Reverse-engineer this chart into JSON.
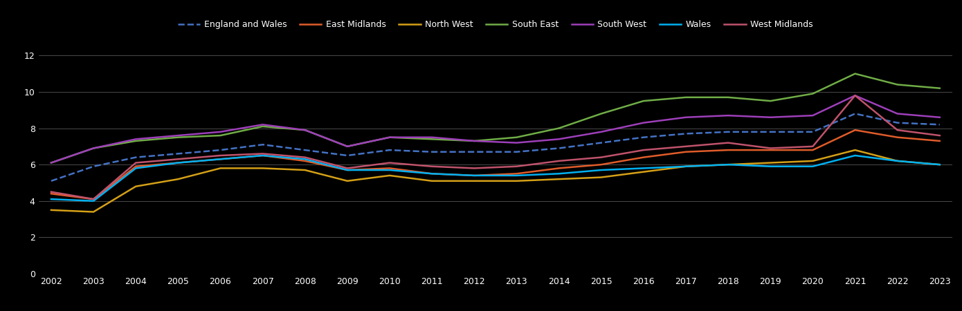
{
  "years": [
    2002,
    2003,
    2004,
    2005,
    2006,
    2007,
    2008,
    2009,
    2010,
    2011,
    2012,
    2013,
    2014,
    2015,
    2016,
    2017,
    2018,
    2019,
    2020,
    2021,
    2022,
    2023
  ],
  "series": {
    "England and Wales": [
      5.1,
      5.9,
      6.4,
      6.6,
      6.8,
      7.1,
      6.8,
      6.5,
      6.8,
      6.7,
      6.7,
      6.7,
      6.9,
      7.2,
      7.5,
      7.7,
      7.8,
      7.8,
      7.8,
      8.8,
      8.3,
      8.2
    ],
    "East Midlands": [
      4.4,
      4.1,
      5.9,
      6.1,
      6.3,
      6.5,
      6.2,
      5.7,
      5.8,
      5.5,
      5.4,
      5.5,
      5.8,
      6.0,
      6.4,
      6.7,
      6.8,
      6.8,
      6.8,
      7.9,
      7.5,
      7.3
    ],
    "North West": [
      3.5,
      3.4,
      4.8,
      5.2,
      5.8,
      5.8,
      5.7,
      5.1,
      5.4,
      5.1,
      5.1,
      5.1,
      5.2,
      5.3,
      5.6,
      5.9,
      6.0,
      6.1,
      6.2,
      6.8,
      6.2,
      6.0
    ],
    "South East": [
      6.1,
      6.9,
      7.3,
      7.5,
      7.6,
      8.1,
      7.9,
      7.0,
      7.5,
      7.4,
      7.3,
      7.5,
      8.0,
      8.8,
      9.5,
      9.7,
      9.7,
      9.5,
      9.9,
      11.0,
      10.4,
      10.2
    ],
    "South West": [
      6.1,
      6.9,
      7.4,
      7.6,
      7.8,
      8.2,
      7.9,
      7.0,
      7.5,
      7.5,
      7.3,
      7.2,
      7.4,
      7.8,
      8.3,
      8.6,
      8.7,
      8.6,
      8.7,
      9.8,
      8.8,
      8.6
    ],
    "Wales": [
      4.1,
      4.0,
      5.8,
      6.1,
      6.3,
      6.5,
      6.3,
      5.7,
      5.7,
      5.5,
      5.4,
      5.4,
      5.5,
      5.7,
      5.8,
      5.9,
      6.0,
      5.9,
      5.9,
      6.5,
      6.2,
      6.0
    ],
    "West Midlands": [
      4.5,
      4.1,
      6.1,
      6.3,
      6.5,
      6.6,
      6.4,
      5.8,
      6.1,
      5.9,
      5.8,
      5.9,
      6.2,
      6.4,
      6.8,
      7.0,
      7.2,
      6.9,
      7.0,
      9.8,
      7.9,
      7.6
    ]
  },
  "colors": {
    "England and Wales": "#4472c4",
    "East Midlands": "#e05c2a",
    "North West": "#d4a017",
    "South East": "#70ad47",
    "South West": "#9e3fba",
    "Wales": "#00b0f0",
    "West Midlands": "#c0536c"
  },
  "styles": {
    "England and Wales": "dashed",
    "East Midlands": "solid",
    "North West": "solid",
    "South East": "solid",
    "South West": "solid",
    "Wales": "solid",
    "West Midlands": "solid"
  },
  "ylim": [
    0,
    13
  ],
  "yticks": [
    0,
    2,
    4,
    6,
    8,
    10,
    12
  ],
  "background_color": "#000000",
  "text_color": "#ffffff",
  "grid_color": "#555555",
  "line_width": 1.8,
  "legend_order": [
    "England and Wales",
    "East Midlands",
    "North West",
    "South East",
    "South West",
    "Wales",
    "West Midlands"
  ]
}
